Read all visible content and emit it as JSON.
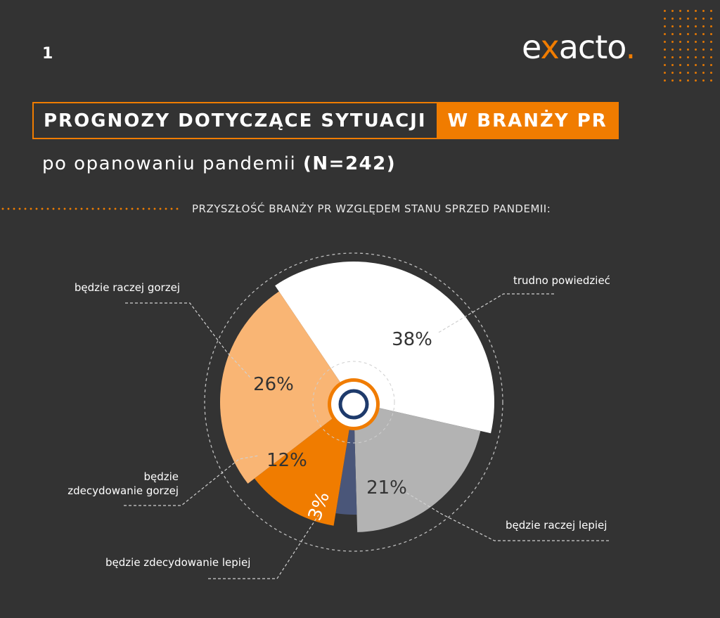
{
  "page_number": "1",
  "logo": {
    "prefix": "e",
    "x": "x",
    "rest": "acto",
    "dot": "."
  },
  "title": {
    "left": "PROGNOZY DOTYCZĄCE SYTUACJI",
    "right": "W BRANŻY PR"
  },
  "subtitle": {
    "text": "po opanowaniu pandemii ",
    "n": "(N=242)"
  },
  "colors": {
    "accent": "#f07c00",
    "background": "#333333"
  },
  "chart_data": {
    "type": "pie",
    "title": "PRZYSZŁOŚĆ BRANŻY PR WZGLĘDEM STANU SPRZED PANDEMII:",
    "slices": [
      {
        "label": "trudno powiedzieć",
        "value": 38,
        "pct_label": "38%",
        "color": "#ffffff"
      },
      {
        "label": "będzie raczej lepiej",
        "value": 21,
        "pct_label": "21%",
        "color": "#b3b3b3"
      },
      {
        "label": "będzie zdecydowanie lepiej",
        "value": 3,
        "pct_label": "3%",
        "color": "#4a5679"
      },
      {
        "label": "będzie zdecydowanie gorzej",
        "value": 12,
        "pct_label": "12%",
        "color": "#f07c00"
      },
      {
        "label": "będzie raczej gorzej",
        "value": 26,
        "pct_label": "26%",
        "color": "#f9b574"
      }
    ]
  }
}
